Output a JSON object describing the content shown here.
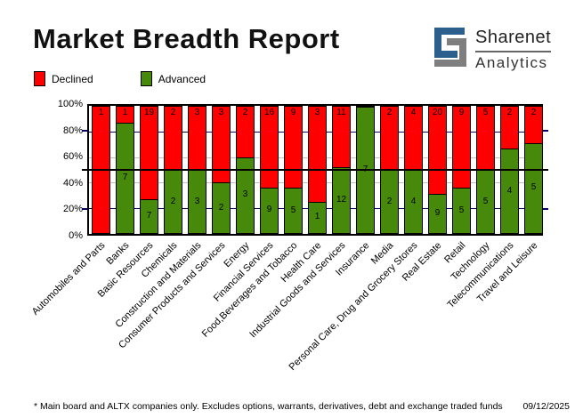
{
  "header": {
    "title": "Market Breadth Report"
  },
  "logo": {
    "brand": "Sharenet",
    "sub": "Analytics",
    "icon_blue": "#2d5f8d",
    "icon_gray": "#7f7f7f"
  },
  "legend": {
    "items": [
      {
        "label": "Declined",
        "color": "#ff0000"
      },
      {
        "label": "Advanced",
        "color": "#478a0b"
      }
    ]
  },
  "chart_data": {
    "type": "bar",
    "stacked": true,
    "note": "stacked 100% bars; segment labels show counts of companies",
    "categories": [
      "Automobiles and Parts",
      "Banks",
      "Basic Resources",
      "Chemicals",
      "Construction and Materials",
      "Consumer Products and Services",
      "Energy",
      "Financial Services",
      "Food,Beverages and Tobacco",
      "Health Care",
      "Industrial Goods and Services",
      "Insurance",
      "Media",
      "Personal Care, Drug and Grocery Stores",
      "Real Estate",
      "Retail",
      "Technology",
      "Telecommunications",
      "Travel and Leisure"
    ],
    "series": [
      {
        "name": "Declined",
        "color": "#ff0000",
        "position": "top",
        "values": [
          1,
          1,
          19,
          2,
          3,
          3,
          2,
          16,
          9,
          3,
          11,
          0,
          2,
          4,
          20,
          9,
          5,
          2,
          2
        ]
      },
      {
        "name": "Advanced",
        "color": "#478a0b",
        "position": "bottom",
        "values": [
          0,
          7,
          7,
          2,
          3,
          2,
          3,
          9,
          5,
          1,
          12,
          7,
          2,
          4,
          9,
          5,
          5,
          4,
          5
        ]
      }
    ],
    "y_ticks": [
      "0%",
      "20%",
      "40%",
      "60%",
      "80%",
      "100%"
    ],
    "ylim": [
      0,
      100
    ],
    "gridlines": {
      "navy_at": [
        20,
        80
      ],
      "gray_at": [
        40,
        60
      ],
      "mid_line_at": 50,
      "navy_color": "#000066",
      "gray_color": "#c0c0c0",
      "mid_color": "#000000"
    },
    "legend_position": "top-left"
  },
  "footer": {
    "note": "* Main board and ALTX companies only. Excludes options, warrants, derivatives, debt and exchange traded funds",
    "date": "09/12/2025"
  }
}
